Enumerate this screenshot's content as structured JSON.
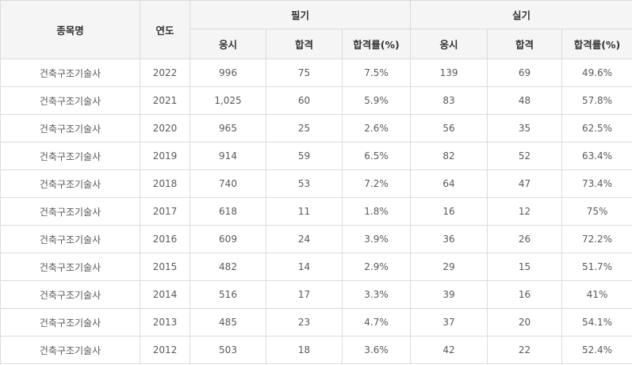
{
  "table": {
    "headers": {
      "subject": "종목명",
      "year": "연도",
      "written": "필기",
      "practical": "실기",
      "applicants": "응시",
      "passed": "합격",
      "pass_rate": "합격률(%)"
    },
    "rows": [
      {
        "subject": "건축구조기술사",
        "year": "2022",
        "w_applicants": "996",
        "w_passed": "75",
        "w_rate": "7.5%",
        "p_applicants": "139",
        "p_passed": "69",
        "p_rate": "49.6%"
      },
      {
        "subject": "건축구조기술사",
        "year": "2021",
        "w_applicants": "1,025",
        "w_passed": "60",
        "w_rate": "5.9%",
        "p_applicants": "83",
        "p_passed": "48",
        "p_rate": "57.8%"
      },
      {
        "subject": "건축구조기술사",
        "year": "2020",
        "w_applicants": "965",
        "w_passed": "25",
        "w_rate": "2.6%",
        "p_applicants": "56",
        "p_passed": "35",
        "p_rate": "62.5%"
      },
      {
        "subject": "건축구조기술사",
        "year": "2019",
        "w_applicants": "914",
        "w_passed": "59",
        "w_rate": "6.5%",
        "p_applicants": "82",
        "p_passed": "52",
        "p_rate": "63.4%"
      },
      {
        "subject": "건축구조기술사",
        "year": "2018",
        "w_applicants": "740",
        "w_passed": "53",
        "w_rate": "7.2%",
        "p_applicants": "64",
        "p_passed": "47",
        "p_rate": "73.4%"
      },
      {
        "subject": "건축구조기술사",
        "year": "2017",
        "w_applicants": "618",
        "w_passed": "11",
        "w_rate": "1.8%",
        "p_applicants": "16",
        "p_passed": "12",
        "p_rate": "75%"
      },
      {
        "subject": "건축구조기술사",
        "year": "2016",
        "w_applicants": "609",
        "w_passed": "24",
        "w_rate": "3.9%",
        "p_applicants": "36",
        "p_passed": "26",
        "p_rate": "72.2%"
      },
      {
        "subject": "건축구조기술사",
        "year": "2015",
        "w_applicants": "482",
        "w_passed": "14",
        "w_rate": "2.9%",
        "p_applicants": "29",
        "p_passed": "15",
        "p_rate": "51.7%"
      },
      {
        "subject": "건축구조기술사",
        "year": "2014",
        "w_applicants": "516",
        "w_passed": "17",
        "w_rate": "3.3%",
        "p_applicants": "39",
        "p_passed": "16",
        "p_rate": "41%"
      },
      {
        "subject": "건축구조기술사",
        "year": "2013",
        "w_applicants": "485",
        "w_passed": "23",
        "w_rate": "4.7%",
        "p_applicants": "37",
        "p_passed": "20",
        "p_rate": "54.1%"
      },
      {
        "subject": "건축구조기술사",
        "year": "2012",
        "w_applicants": "503",
        "w_passed": "18",
        "w_rate": "3.6%",
        "p_applicants": "42",
        "p_passed": "22",
        "p_rate": "52.4%"
      }
    ]
  }
}
